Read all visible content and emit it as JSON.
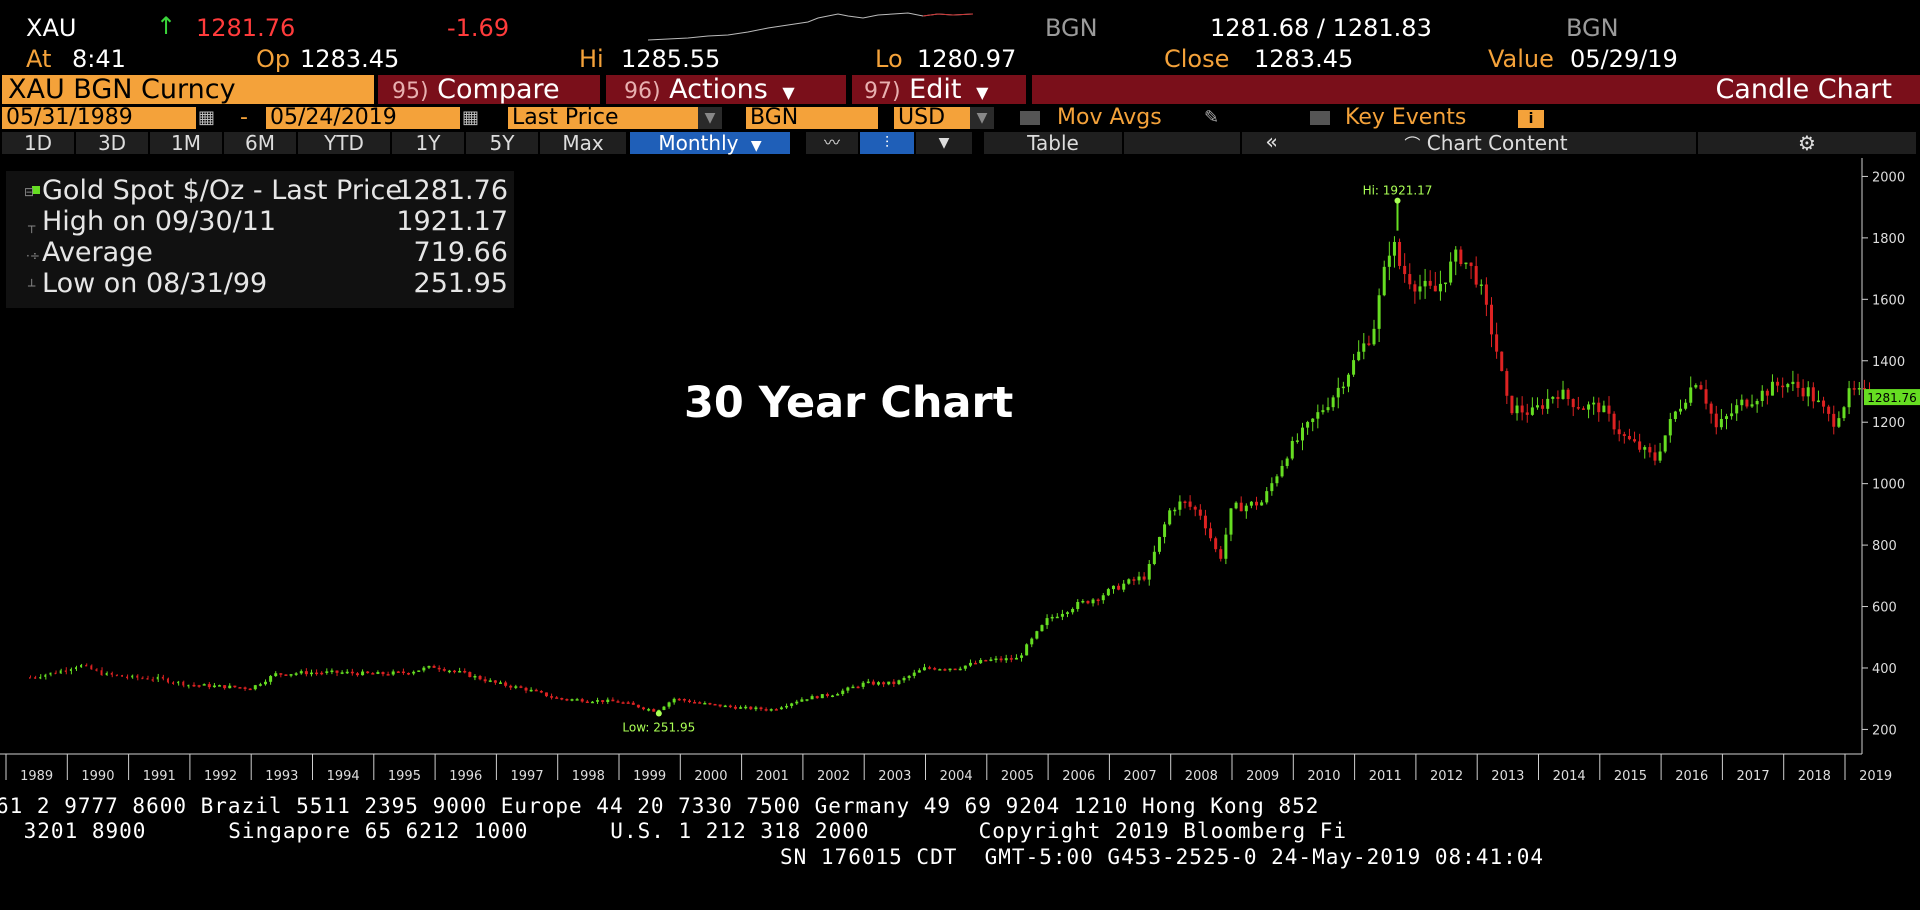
{
  "quote": {
    "ticker": "XAU",
    "arrow": "↑",
    "last": "1281.76",
    "change": "-1.69",
    "source1": "BGN",
    "bid_ask": "1281.68 / 1281.83",
    "source2": "BGN",
    "at_label": "At",
    "at_time": "8:41",
    "op_label": "Op",
    "op_val": "1283.45",
    "hi_label": "Hi",
    "hi_val": "1285.55",
    "lo_label": "Lo",
    "lo_val": "1280.97",
    "close_label": "Close",
    "close_val": "1283.45",
    "value_label": "Value",
    "value_val": "05/29/19"
  },
  "toolbar": {
    "security": "XAU BGN Curncy",
    "compare_num": "95)",
    "compare": "Compare",
    "actions_num": "96)",
    "actions": "Actions",
    "edit_num": "97)",
    "edit": "Edit",
    "title": "Candle Chart"
  },
  "settings": {
    "start_date": "05/31/1989",
    "dash": "-",
    "end_date": "05/24/2019",
    "field": "Last Price",
    "source": "BGN",
    "currency": "USD",
    "mov_avgs": "Mov Avgs",
    "key_events": "Key Events"
  },
  "tabs": [
    "1D",
    "3D",
    "1M",
    "6M",
    "YTD",
    "1Y",
    "5Y",
    "Max"
  ],
  "period": "Monthly",
  "table_label": "Table",
  "collapse_label": "«",
  "chart_content_label": "Chart Content",
  "legend": {
    "rows": [
      {
        "label": "Gold Spot $/Oz - Last Price",
        "value": "1281.76"
      },
      {
        "label": "High on 09/30/11",
        "value": "1921.17"
      },
      {
        "label": "Average",
        "value": "719.66"
      },
      {
        "label": "Low on 08/31/99",
        "value": "251.95"
      }
    ]
  },
  "overlay_title": "30 Year Chart",
  "colors": {
    "up": "#66dd22",
    "down": "#dd2222",
    "orange": "#f4a23a",
    "darkred": "#7a0f1a",
    "blue": "#1f5fb8"
  },
  "chart_data": {
    "type": "candlestick",
    "title": "",
    "xlabel": "",
    "ylabel": "",
    "ylim": [
      120,
      2060
    ],
    "yticks": [
      200,
      400,
      600,
      800,
      1000,
      1200,
      1400,
      1600,
      1800,
      2000
    ],
    "xticks": [
      "1989",
      "1990",
      "1991",
      "1992",
      "1993",
      "1994",
      "1995",
      "1996",
      "1997",
      "1998",
      "1999",
      "2000",
      "2001",
      "2002",
      "2003",
      "2004",
      "2005",
      "2006",
      "2007",
      "2008",
      "2009",
      "2010",
      "2011",
      "2012",
      "2013",
      "2014",
      "2015",
      "2016",
      "2017",
      "2018",
      "2019"
    ],
    "series": [
      {
        "x": [
          1989.4,
          1989.8,
          1990.2,
          1990.6,
          1991.0,
          1991.5,
          1992.0,
          1992.5,
          1993.0,
          1993.4,
          1993.9,
          1994.5,
          1995.0,
          1995.5,
          1996.0,
          1996.5,
          1997.0,
          1997.5,
          1998.0,
          1998.5,
          1999.0,
          1999.6,
          1999.9,
          2000.5,
          2001.0,
          2001.5,
          2002.0,
          2002.5,
          2003.0,
          2003.5,
          2004.0,
          2004.5,
          2005.0,
          2005.5,
          2006.0,
          2006.4,
          2006.8,
          2007.2,
          2007.6,
          2008.0,
          2008.2,
          2008.5,
          2008.8,
          2009.0,
          2009.5,
          2009.9,
          2010.3,
          2010.7,
          2011.0,
          2011.3,
          2011.6,
          2011.75,
          2012.0,
          2012.3,
          2012.7,
          2013.0,
          2013.3,
          2013.5,
          2013.9,
          2014.3,
          2014.7,
          2015.0,
          2015.4,
          2015.9,
          2016.2,
          2016.6,
          2016.9,
          2017.3,
          2017.7,
          2018.0,
          2018.4,
          2018.8,
          2019.1,
          2019.4
        ],
        "values": [
          370,
          385,
          410,
          380,
          370,
          365,
          345,
          340,
          335,
          380,
          385,
          385,
          380,
          385,
          405,
          380,
          350,
          330,
          300,
          295,
          290,
          260,
          300,
          280,
          270,
          265,
          300,
          315,
          350,
          350,
          400,
          400,
          425,
          430,
          560,
          600,
          630,
          670,
          700,
          920,
          940,
          900,
          750,
          920,
          940,
          1100,
          1200,
          1300,
          1400,
          1500,
          1800,
          1700,
          1650,
          1620,
          1750,
          1670,
          1450,
          1250,
          1230,
          1300,
          1250,
          1250,
          1150,
          1080,
          1220,
          1350,
          1180,
          1260,
          1300,
          1330,
          1300,
          1200,
          1300,
          1282
        ],
        "name": ""
      }
    ],
    "annotations": [
      {
        "text": "Hi: 1921.17",
        "x": 2011.7,
        "y": 1921.17
      },
      {
        "text": "Low: 251.95",
        "x": 1999.65,
        "y": 251.95
      },
      {
        "text": "1281.76",
        "y": 1281.76
      }
    ],
    "legend_position": "top-left",
    "grid": false
  },
  "footer": {
    "line1": "61 2 9777 8600 Brazil 5511 2395 9000 Europe 44 20 7330 7500 Germany 49 69 9204 1210 Hong Kong 852",
    "line2": " 3201 8900      Singapore 65 6212 1000      U.S. 1 212 318 2000        Copyright 2019 Bloomberg Fi",
    "line3": "SN 176015 CDT  GMT-5:00 G453-2525-0 24-May-2019 08:41:04"
  }
}
